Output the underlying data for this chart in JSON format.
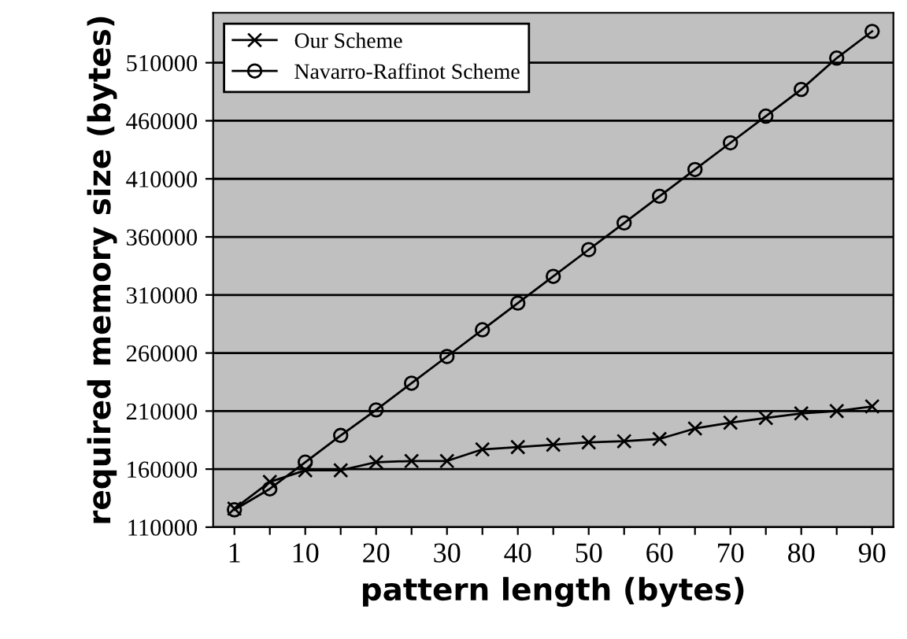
{
  "chart_data": {
    "type": "line",
    "xlabel": "pattern length (bytes)",
    "ylabel": "required memory size (bytes)",
    "categories": [
      "1",
      null,
      "10",
      null,
      "20",
      null,
      "30",
      null,
      "40",
      null,
      "50",
      null,
      "60",
      null,
      "70",
      null,
      "80",
      null,
      "90"
    ],
    "series": [
      {
        "name": "Our Scheme",
        "color": "#000000",
        "marker": "cross",
        "values": [
          126000,
          149000,
          159000,
          159000,
          166000,
          167000,
          167000,
          177000,
          179000,
          181000,
          183000,
          184000,
          186000,
          195000,
          200000,
          204000,
          208000,
          210000,
          214000
        ]
      },
      {
        "name": "Navarro-Raffinot Scheme",
        "color": "#000000",
        "marker": "circle",
        "values": [
          125000,
          143000,
          166000,
          189000,
          211000,
          234000,
          257000,
          280000,
          303000,
          326000,
          349000,
          372000,
          395000,
          418000,
          441000,
          464000,
          487000,
          514000,
          537000
        ]
      }
    ],
    "ylim": [
      110000,
      553000
    ],
    "yticks": [
      110000,
      160000,
      210000,
      260000,
      310000,
      360000,
      410000,
      460000,
      510000
    ],
    "grid": "y",
    "legend": "top left",
    "line_style": "solid"
  }
}
